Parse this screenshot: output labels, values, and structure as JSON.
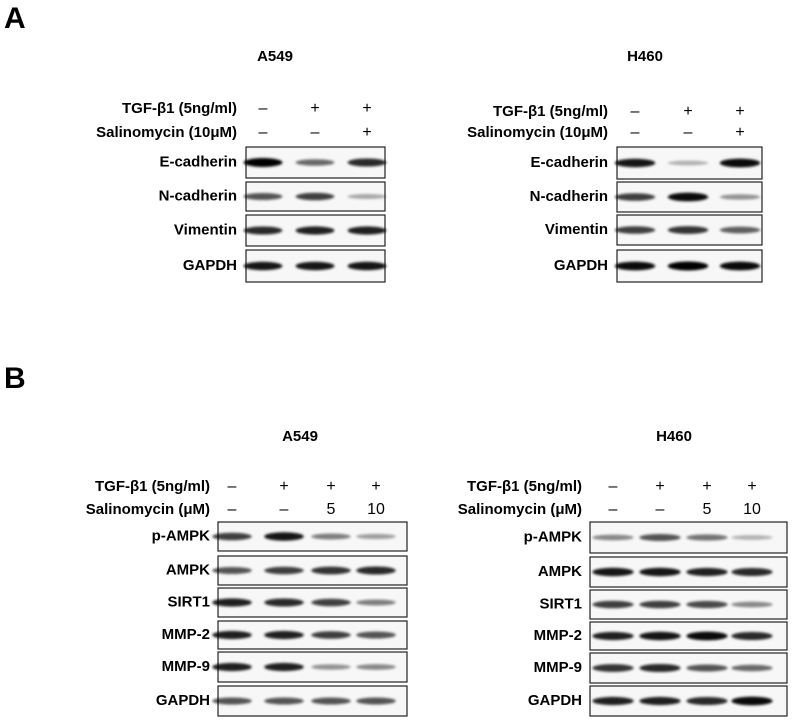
{
  "panels": [
    {
      "label": "A",
      "blots": [
        {
          "title": "A549",
          "conditions": [
            {
              "label": "TGF-β1 (5ng/ml)",
              "values": [
                "–",
                "+",
                "+"
              ]
            },
            {
              "label": "Salinomycin (10μM)",
              "values": [
                "–",
                "–",
                "+"
              ]
            }
          ],
          "rows": [
            "E-cadherin",
            "N-cadherin",
            "Vimentin",
            "GAPDH"
          ]
        },
        {
          "title": "H460",
          "conditions": [
            {
              "label": "TGF-β1 (5ng/ml)",
              "values": [
                "–",
                "+",
                "+"
              ]
            },
            {
              "label": "Salinomycin (10μM)",
              "values": [
                "–",
                "–",
                "+"
              ]
            }
          ],
          "rows": [
            "E-cadherin",
            "N-cadherin",
            "Vimentin",
            "GAPDH"
          ]
        }
      ]
    },
    {
      "label": "B",
      "blots": [
        {
          "title": "A549",
          "conditions": [
            {
              "label": "TGF-β1 (5ng/ml)",
              "values": [
                "–",
                "+",
                "+",
                "+"
              ]
            },
            {
              "label": "Salinomycin (μM)",
              "values": [
                "–",
                "–",
                "5",
                "10"
              ]
            }
          ],
          "rows": [
            "p-AMPK",
            "AMPK",
            "SIRT1",
            "MMP-2",
            "MMP-9",
            "GAPDH"
          ]
        },
        {
          "title": "H460",
          "conditions": [
            {
              "label": "TGF-β1 (5ng/ml)",
              "values": [
                "–",
                "+",
                "+",
                "+"
              ]
            },
            {
              "label": "Salinomycin (μM)",
              "values": [
                "–",
                "–",
                "5",
                "10"
              ]
            }
          ],
          "rows": [
            "p-AMPK",
            "AMPK",
            "SIRT1",
            "MMP-2",
            "MMP-9",
            "GAPDH"
          ]
        }
      ]
    }
  ]
}
